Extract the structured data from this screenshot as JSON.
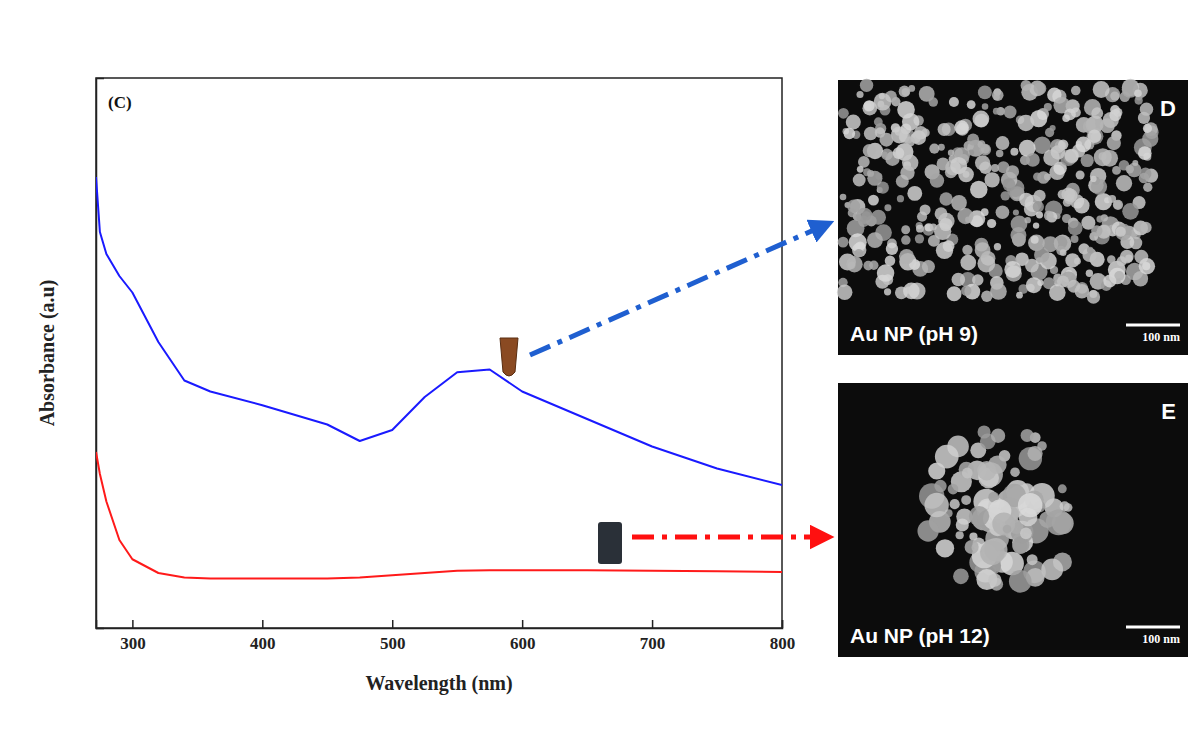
{
  "chart_data": {
    "type": "line",
    "panel_label": "(C)",
    "x_label": "Wavelength (nm)",
    "y_label": "Absorbance (a.u)",
    "x": [
      272,
      275,
      280,
      290,
      300,
      320,
      340,
      360,
      400,
      450,
      475,
      500,
      525,
      550,
      575,
      600,
      650,
      700,
      750,
      800
    ],
    "series": [
      {
        "color": "#1a1aff",
        "values": [
          0.82,
          0.72,
          0.68,
          0.64,
          0.61,
          0.52,
          0.45,
          0.43,
          0.405,
          0.37,
          0.34,
          0.36,
          0.42,
          0.465,
          0.47,
          0.43,
          0.38,
          0.33,
          0.29,
          0.26
        ]
      },
      {
        "color": "#ff1a1a",
        "values": [
          0.32,
          0.28,
          0.23,
          0.16,
          0.125,
          0.1,
          0.092,
          0.09,
          0.09,
          0.09,
          0.092,
          0.096,
          0.1,
          0.104,
          0.105,
          0.105,
          0.105,
          0.104,
          0.103,
          0.102
        ]
      }
    ],
    "xlim": [
      272,
      800
    ],
    "xticks": [
      300,
      400,
      500,
      600,
      700,
      800
    ],
    "ylim": [
      0,
      1
    ],
    "tick_labels": "x",
    "grid": false
  },
  "panels": [
    {
      "letter": "D",
      "caption": "Au NP (pH 9)",
      "scale_bar": "100 nm"
    },
    {
      "letter": "E",
      "caption": "Au NP (pH 12)",
      "scale_bar": "100 nm"
    }
  ]
}
